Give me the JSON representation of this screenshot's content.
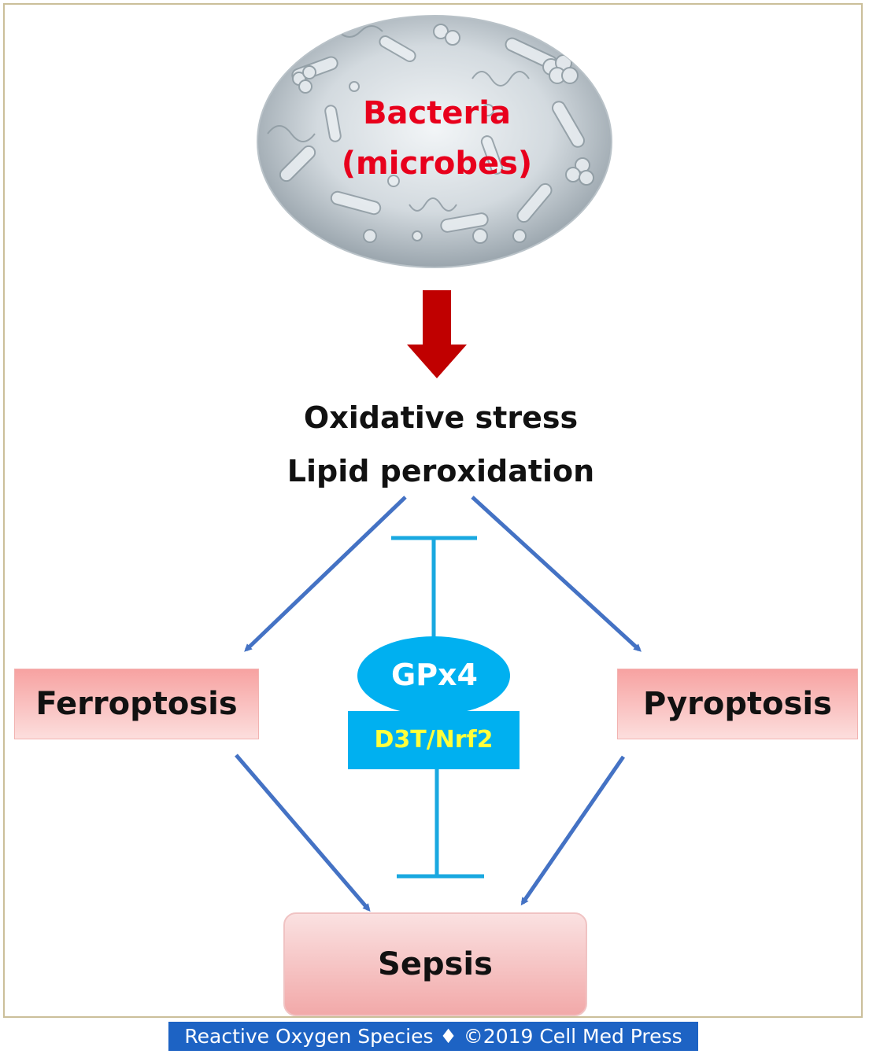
{
  "diagram": {
    "source": {
      "line1": "Bacteria",
      "line2": "(microbes)"
    },
    "stress": {
      "line1": "Oxidative stress",
      "line2": "Lipid peroxidation"
    },
    "ferroptosis": "Ferroptosis",
    "pyroptosis": "Pyroptosis",
    "sepsis": "Sepsis",
    "inhibitor": {
      "enzyme": "GPx4",
      "pathway": "D3T/Nrf2"
    }
  },
  "footer": {
    "credit": "Reactive Oxygen Species ♦ ©2019 Cell Med Press"
  },
  "colors": {
    "bacteria_text": "#e8001c",
    "main_arrow": "#c00000",
    "flow_arrows": "#4472c4",
    "inhibition_lines": "#19a8e0",
    "gpx4_fill": "#00b0f0",
    "d3t_text": "#ffff3c",
    "footer_bg": "#1d63c4"
  },
  "icons": {
    "source_image": "bacteria-microscopy-icon"
  }
}
